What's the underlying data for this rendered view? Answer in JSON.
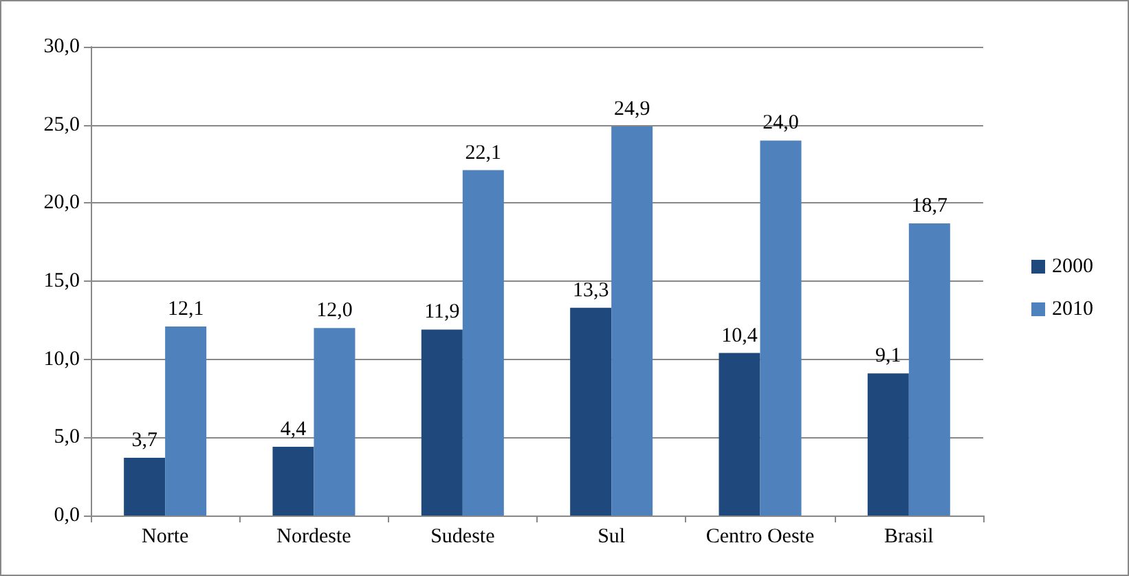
{
  "chart_data": {
    "type": "bar",
    "categories": [
      "Norte",
      "Nordeste",
      "Sudeste",
      "Sul",
      "Centro Oeste",
      "Brasil"
    ],
    "series": [
      {
        "name": "2000",
        "color": "#1f497d",
        "values": [
          3.7,
          4.4,
          11.9,
          13.3,
          10.4,
          9.1
        ],
        "value_labels": [
          "3,7",
          "4,4",
          "11,9",
          "13,3",
          "10,4",
          "9,1"
        ]
      },
      {
        "name": "2010",
        "color": "#4f81bd",
        "values": [
          12.1,
          12.0,
          22.1,
          24.9,
          24.0,
          18.7
        ],
        "value_labels": [
          "12,1",
          "12,0",
          "22,1",
          "24,9",
          "24,0",
          "18,7"
        ]
      }
    ],
    "ylim": [
      0,
      30
    ],
    "yticks": [
      {
        "value": 0,
        "label": "0,0"
      },
      {
        "value": 5,
        "label": "5,0"
      },
      {
        "value": 10,
        "label": "10,0"
      },
      {
        "value": 15,
        "label": "15,0"
      },
      {
        "value": 20,
        "label": "20,0"
      },
      {
        "value": 25,
        "label": "25,0"
      },
      {
        "value": 30,
        "label": "30,0"
      }
    ],
    "grid": "y",
    "legend": "right"
  }
}
